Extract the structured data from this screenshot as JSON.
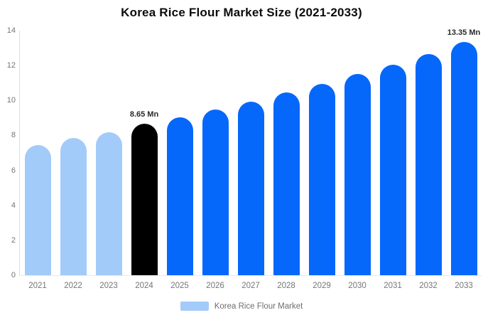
{
  "chart_data": {
    "type": "bar",
    "title": "Korea Rice Flour Market Size (2021-2033)",
    "categories": [
      "2021",
      "2022",
      "2023",
      "2024",
      "2025",
      "2026",
      "2027",
      "2028",
      "2029",
      "2030",
      "2031",
      "2032",
      "2033"
    ],
    "values": [
      7.45,
      7.85,
      8.2,
      8.65,
      9.05,
      9.5,
      9.95,
      10.45,
      10.95,
      11.5,
      12.05,
      12.65,
      13.35
    ],
    "unit": "Mn",
    "ylim": [
      0,
      14
    ],
    "yticks": [
      0,
      2,
      4,
      6,
      8,
      10,
      12,
      14
    ],
    "grid": false,
    "bar_colors": [
      "#a3cbf9",
      "#a3cbf9",
      "#a3cbf9",
      "#000000",
      "#0667fb",
      "#0667fb",
      "#0667fb",
      "#0667fb",
      "#0667fb",
      "#0667fb",
      "#0667fb",
      "#0667fb",
      "#0667fb"
    ],
    "data_labels": [
      {
        "category": "2024",
        "text": "8.65 Mn"
      },
      {
        "category": "2033",
        "text": "13.35 Mn"
      }
    ],
    "legend": {
      "label": "Korea Rice Flour Market",
      "position": "bottom",
      "swatch_color": "#a3cbf9"
    },
    "colors": {
      "axis_line": "#dedede",
      "baseline": "#e8e8e8",
      "tick_text": "#757575",
      "title_text": "#0c0c0c",
      "data_label_text": "#26282b",
      "background": "#ffffff"
    }
  }
}
